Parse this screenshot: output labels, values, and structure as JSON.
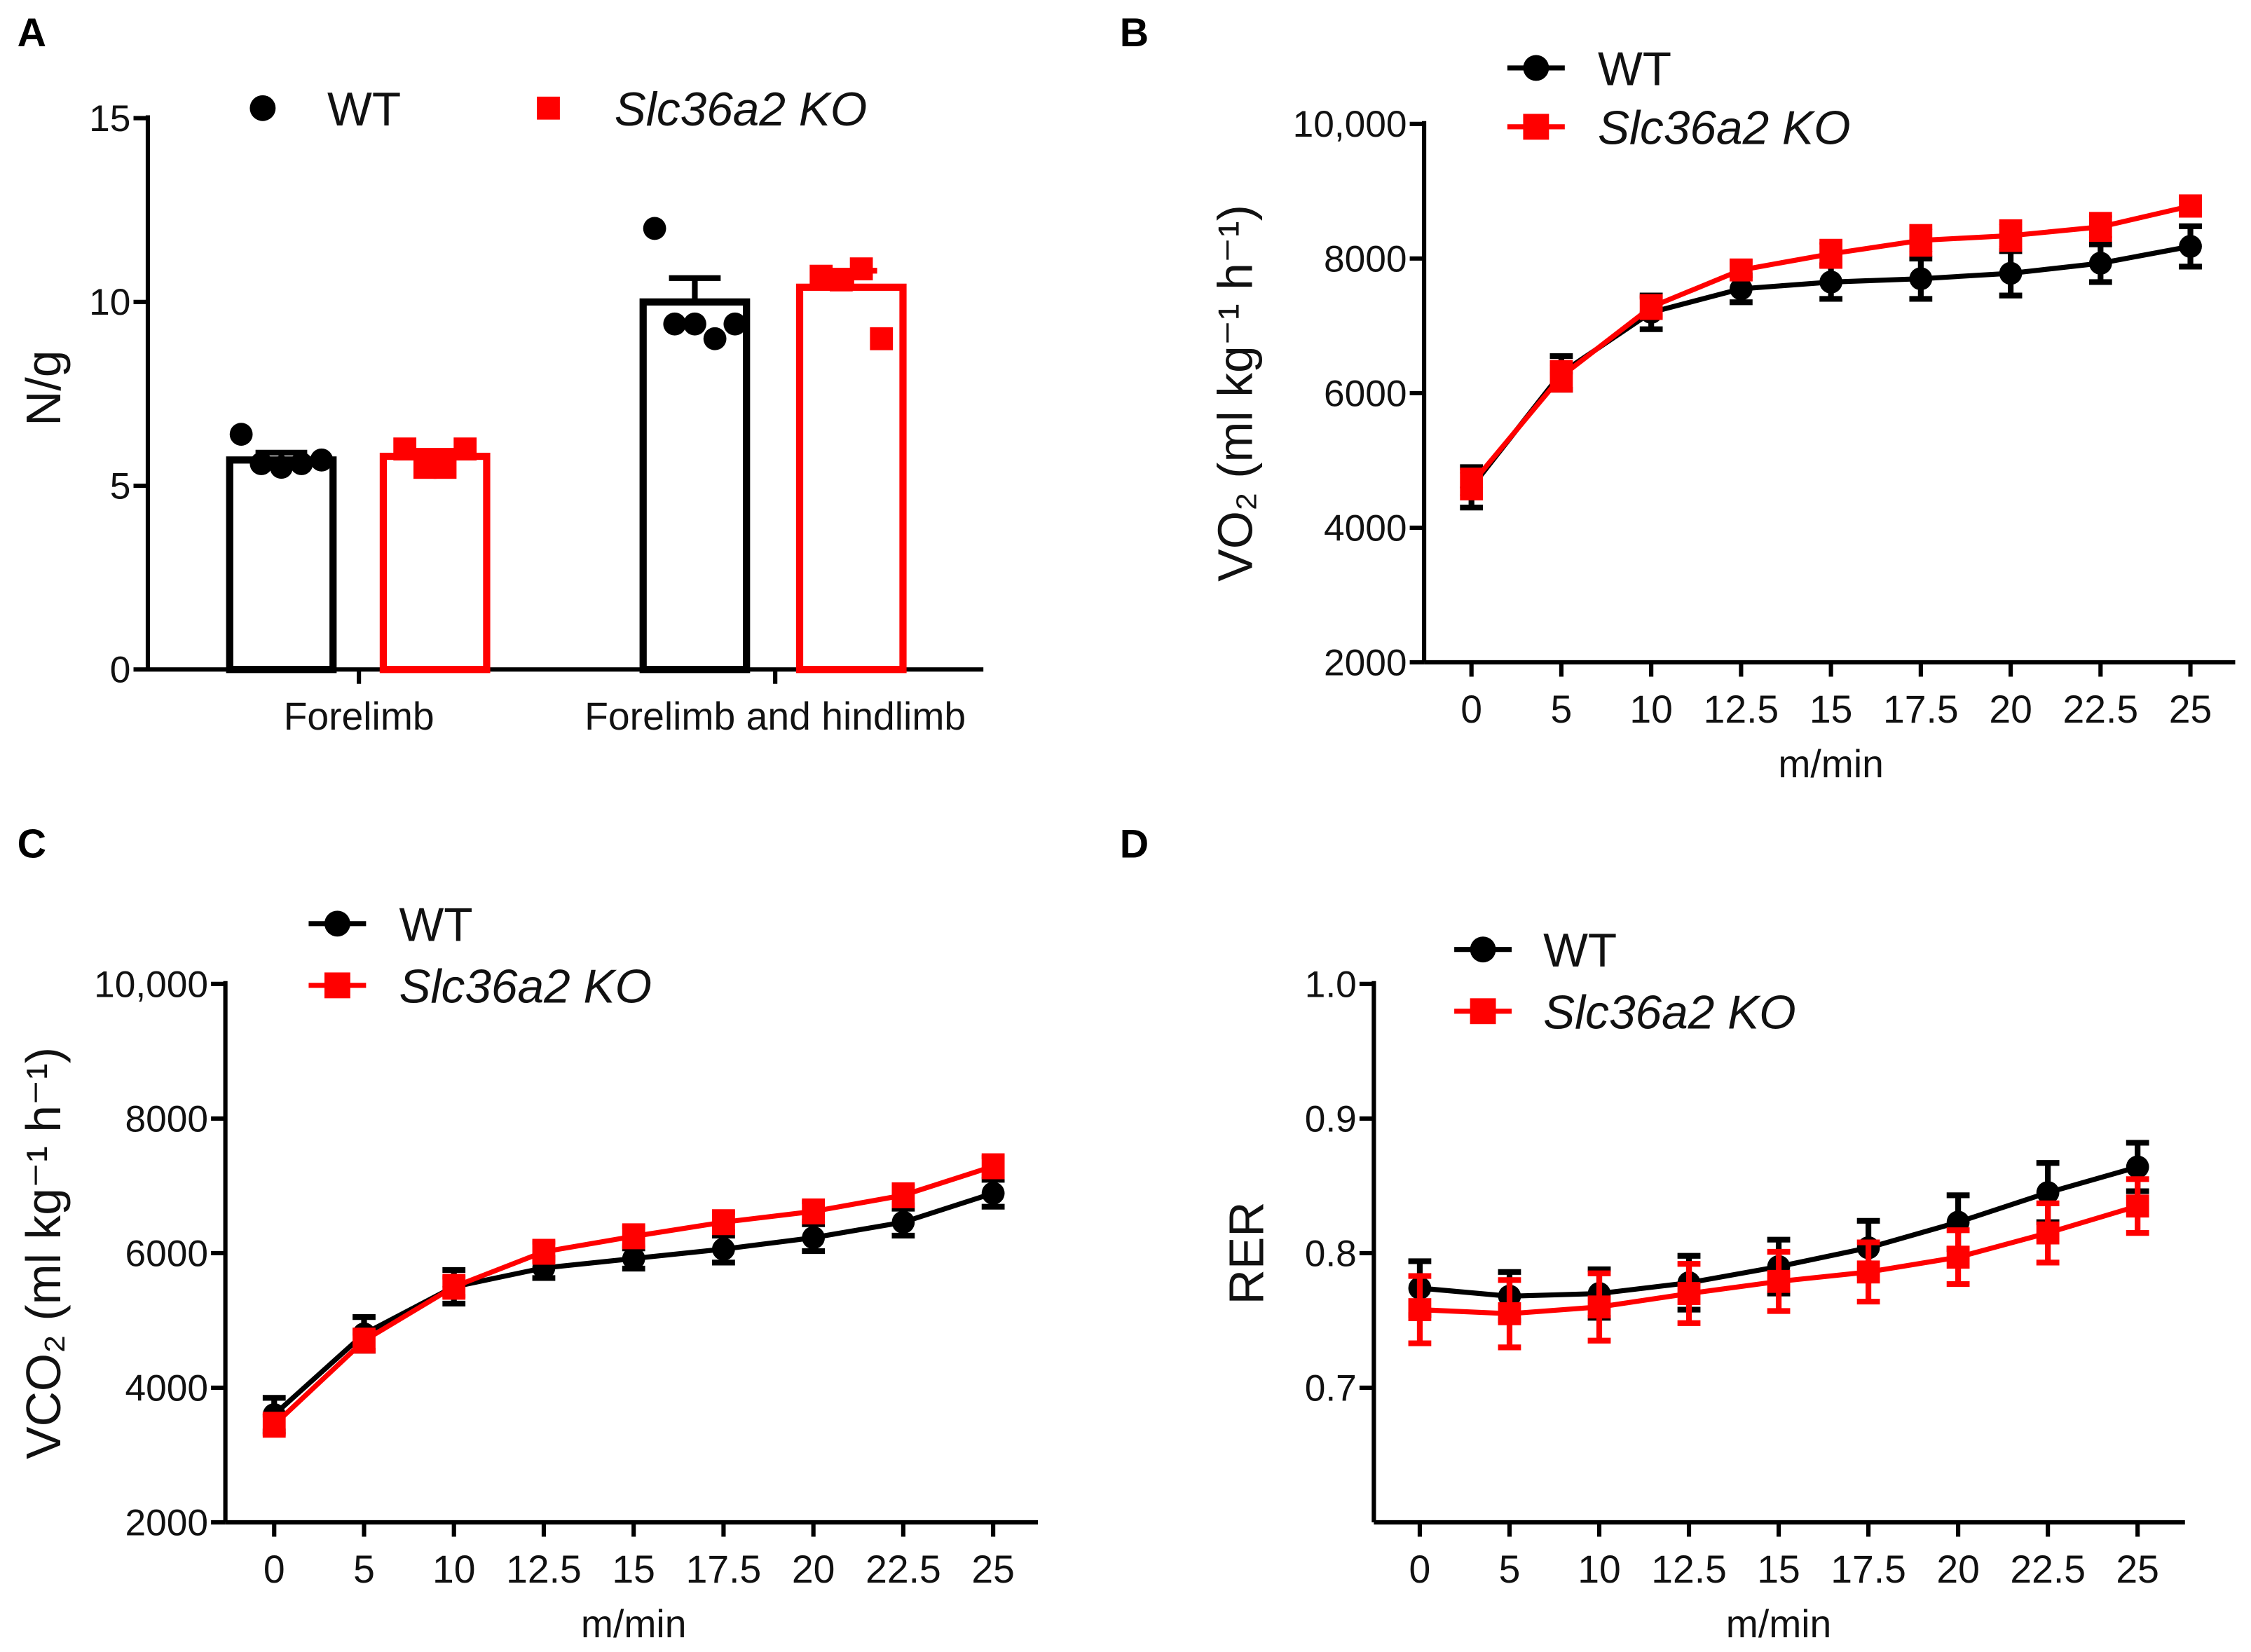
{
  "colors": {
    "wt": "#000000",
    "ko": "#ff0000"
  },
  "chart_data": [
    {
      "panel": "A",
      "type": "bar",
      "ylabel": "N/g",
      "ylim": [
        0,
        15
      ],
      "yticks": [
        "0",
        "5",
        "10",
        "15"
      ],
      "categories": [
        "Forelimb",
        "Forelimb and hindlimb"
      ],
      "legend": {
        "placement": "top",
        "entries": [
          "WT",
          "Slc36a2 KO"
        ]
      },
      "series": [
        {
          "name": "WT",
          "values": [
            5.7,
            10.0
          ],
          "sem": [
            0.2,
            0.65
          ],
          "points": [
            [
              6.4,
              5.6,
              5.5,
              5.6,
              5.7
            ],
            [
              12.0,
              9.4,
              9.4,
              9.0,
              9.4
            ]
          ]
        },
        {
          "name": "Slc36a2 KO",
          "values": [
            5.8,
            10.4
          ],
          "sem": [
            0.15,
            0.45
          ],
          "points": [
            [
              6.0,
              5.5,
              5.5,
              6.0
            ],
            [
              10.7,
              10.6,
              10.9,
              9.0
            ]
          ]
        }
      ]
    },
    {
      "panel": "B",
      "type": "line",
      "ylabel": "VO₂ (ml kg⁻¹ h⁻¹)",
      "xlabel": "m/min",
      "ylim": [
        2000,
        10000
      ],
      "yticks": [
        "2000",
        "4000",
        "6000",
        "8000",
        "10,000"
      ],
      "x": [
        "0",
        "5",
        "10",
        "12.5",
        "15",
        "17.5",
        "20",
        "22.5",
        "25"
      ],
      "legend": {
        "placement": "top-left",
        "entries": [
          "WT",
          "Slc36a2 KO"
        ]
      },
      "series": [
        {
          "name": "WT",
          "values": [
            4600,
            6300,
            7200,
            7550,
            7650,
            7700,
            7780,
            7930,
            8180
          ],
          "sem": [
            300,
            250,
            250,
            200,
            250,
            300,
            330,
            280,
            300
          ]
        },
        {
          "name": "Slc36a2 KO",
          "values": [
            4650,
            6250,
            7280,
            7830,
            8070,
            8270,
            8340,
            8470,
            8780
          ],
          "sem": [
            200,
            200,
            150,
            120,
            180,
            200,
            200,
            180,
            130
          ]
        }
      ]
    },
    {
      "panel": "C",
      "type": "line",
      "ylabel": "VCO₂ (ml kg⁻¹ h⁻¹)",
      "xlabel": "m/min",
      "ylim": [
        2000,
        10000
      ],
      "yticks": [
        "2000",
        "4000",
        "6000",
        "8000",
        "10,000"
      ],
      "x": [
        "0",
        "5",
        "10",
        "12.5",
        "15",
        "17.5",
        "20",
        "22.5",
        "25"
      ],
      "legend": {
        "placement": "top-left",
        "entries": [
          "WT",
          "Slc36a2 KO"
        ]
      },
      "series": [
        {
          "name": "WT",
          "values": [
            3600,
            4800,
            5500,
            5780,
            5920,
            6060,
            6230,
            6460,
            6890
          ],
          "sem": [
            250,
            250,
            250,
            150,
            150,
            200,
            200,
            200,
            200
          ]
        },
        {
          "name": "Slc36a2 KO",
          "values": [
            3450,
            4700,
            5500,
            6020,
            6250,
            6460,
            6620,
            6860,
            7290
          ],
          "sem": [
            150,
            150,
            150,
            150,
            150,
            150,
            150,
            150,
            150
          ]
        }
      ]
    },
    {
      "panel": "D",
      "type": "line",
      "ylabel": "RER",
      "xlabel": "m/min",
      "ylim": [
        0.6,
        1.0
      ],
      "yticks": [
        "0.7",
        "0.8",
        "0.9",
        "1.0"
      ],
      "x": [
        "0",
        "5",
        "10",
        "12.5",
        "15",
        "17.5",
        "20",
        "22.5",
        "25"
      ],
      "legend": {
        "placement": "top-left",
        "entries": [
          "WT",
          "Slc36a2 KO"
        ]
      },
      "series": [
        {
          "name": "WT",
          "values": [
            0.774,
            0.768,
            0.77,
            0.778,
            0.79,
            0.804,
            0.823,
            0.845,
            0.864
          ],
          "sem": [
            0.02,
            0.018,
            0.018,
            0.02,
            0.02,
            0.02,
            0.02,
            0.022,
            0.018
          ]
        },
        {
          "name": "Slc36a2 KO",
          "values": [
            0.758,
            0.755,
            0.76,
            0.77,
            0.779,
            0.786,
            0.797,
            0.815,
            0.835
          ],
          "sem": [
            0.025,
            0.025,
            0.025,
            0.022,
            0.022,
            0.022,
            0.02,
            0.022,
            0.02
          ]
        }
      ]
    }
  ]
}
